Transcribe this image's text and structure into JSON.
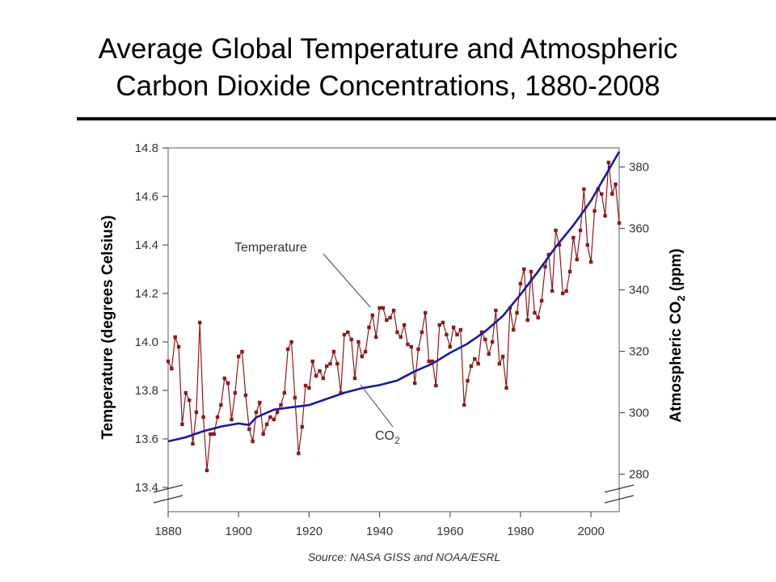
{
  "page": {
    "title_line1": "Average Global Temperature and Atmospheric",
    "title_line2": "Carbon Dioxide Concentrations, 1880-2008"
  },
  "chart_data": {
    "type": "line",
    "title": "Average Global Temperature and Atmospheric Carbon Dioxide Concentrations, 1880-2008",
    "xlabel": "",
    "ylabel": "Temperature (degrees Celsius)",
    "y2label_parts": [
      "Atmospheric CO",
      "2",
      " (ppm)"
    ],
    "xlim": [
      1880,
      2008
    ],
    "ylim": [
      13.3,
      14.8
    ],
    "y2lim": [
      267.8,
      386.2
    ],
    "xticks": [
      1880,
      1900,
      1920,
      1940,
      1960,
      1980,
      2000
    ],
    "yticks": [
      13.4,
      13.6,
      13.8,
      14.0,
      14.2,
      14.4,
      14.6,
      14.8
    ],
    "y2ticks": [
      280,
      300,
      320,
      340,
      360,
      380
    ],
    "grid": false,
    "source": "Source: NASA GISS and NOAA/ESRL",
    "colors": {
      "temperature": "#8b1a1a",
      "co2": "#1a1a9c",
      "axis": "#555555"
    },
    "annotations": [
      {
        "text": "Temperature",
        "series": "Temperature"
      },
      {
        "text_main": "CO",
        "text_sub": "2",
        "series": "CO2"
      }
    ],
    "series": [
      {
        "name": "Temperature",
        "axis": "left",
        "x": [
          1880,
          1881,
          1882,
          1883,
          1884,
          1885,
          1886,
          1887,
          1888,
          1889,
          1890,
          1891,
          1892,
          1893,
          1894,
          1895,
          1896,
          1897,
          1898,
          1899,
          1900,
          1901,
          1902,
          1903,
          1904,
          1905,
          1906,
          1907,
          1908,
          1909,
          1910,
          1911,
          1912,
          1913,
          1914,
          1915,
          1916,
          1917,
          1918,
          1919,
          1920,
          1921,
          1922,
          1923,
          1924,
          1925,
          1926,
          1927,
          1928,
          1929,
          1930,
          1931,
          1932,
          1933,
          1934,
          1935,
          1936,
          1937,
          1938,
          1939,
          1940,
          1941,
          1942,
          1943,
          1944,
          1945,
          1946,
          1947,
          1948,
          1949,
          1950,
          1951,
          1952,
          1953,
          1954,
          1955,
          1956,
          1957,
          1958,
          1959,
          1960,
          1961,
          1962,
          1963,
          1964,
          1965,
          1966,
          1967,
          1968,
          1969,
          1970,
          1971,
          1972,
          1973,
          1974,
          1975,
          1976,
          1977,
          1978,
          1979,
          1980,
          1981,
          1982,
          1983,
          1984,
          1985,
          1986,
          1987,
          1988,
          1989,
          1990,
          1991,
          1992,
          1993,
          1994,
          1995,
          1996,
          1997,
          1998,
          1999,
          2000,
          2001,
          2002,
          2003,
          2004,
          2005,
          2006,
          2007,
          2008
        ],
        "values": [
          13.92,
          13.89,
          14.02,
          13.98,
          13.66,
          13.79,
          13.76,
          13.58,
          13.71,
          14.08,
          13.69,
          13.47,
          13.62,
          13.62,
          13.69,
          13.74,
          13.85,
          13.83,
          13.68,
          13.79,
          13.94,
          13.96,
          13.78,
          13.64,
          13.59,
          13.71,
          13.75,
          13.62,
          13.66,
          13.69,
          13.68,
          13.71,
          13.74,
          13.79,
          13.97,
          14.0,
          13.77,
          13.54,
          13.65,
          13.82,
          13.81,
          13.92,
          13.86,
          13.88,
          13.85,
          13.9,
          13.91,
          13.96,
          13.91,
          13.79,
          14.03,
          14.04,
          14.01,
          13.85,
          14.0,
          13.94,
          13.96,
          14.06,
          14.11,
          14.02,
          14.14,
          14.14,
          14.09,
          14.1,
          14.13,
          14.04,
          14.02,
          14.07,
          13.99,
          13.98,
          13.83,
          13.97,
          14.04,
          14.12,
          13.92,
          13.92,
          13.82,
          14.07,
          14.08,
          14.03,
          13.98,
          14.06,
          14.03,
          14.05,
          13.74,
          13.84,
          13.9,
          13.93,
          13.91,
          14.04,
          14.01,
          13.95,
          14.0,
          14.13,
          13.91,
          13.94,
          13.81,
          14.14,
          14.05,
          14.12,
          14.24,
          14.3,
          14.09,
          14.29,
          14.12,
          14.1,
          14.17,
          14.31,
          14.36,
          14.21,
          14.46,
          14.4,
          14.2,
          14.21,
          14.29,
          14.43,
          14.34,
          14.46,
          14.63,
          14.4,
          14.33,
          14.54,
          14.63,
          14.61,
          14.52,
          14.74,
          14.61,
          14.65,
          14.49
        ]
      },
      {
        "name": "CO2",
        "axis": "right",
        "x": [
          1880,
          1885,
          1890,
          1895,
          1900,
          1903,
          1905,
          1910,
          1915,
          1920,
          1925,
          1930,
          1935,
          1940,
          1945,
          1950,
          1955,
          1960,
          1965,
          1970,
          1975,
          1980,
          1985,
          1990,
          1995,
          2000,
          2005,
          2008
        ],
        "values": [
          290.7,
          292.0,
          294.0,
          295.5,
          296.5,
          296.0,
          298.5,
          301.0,
          301.8,
          302.5,
          304.5,
          306.5,
          308.0,
          309.0,
          310.5,
          313.5,
          316.0,
          319.5,
          322.5,
          326.5,
          331.5,
          338.5,
          346.0,
          354.0,
          361.0,
          369.0,
          379.0,
          385.0
        ]
      }
    ]
  }
}
